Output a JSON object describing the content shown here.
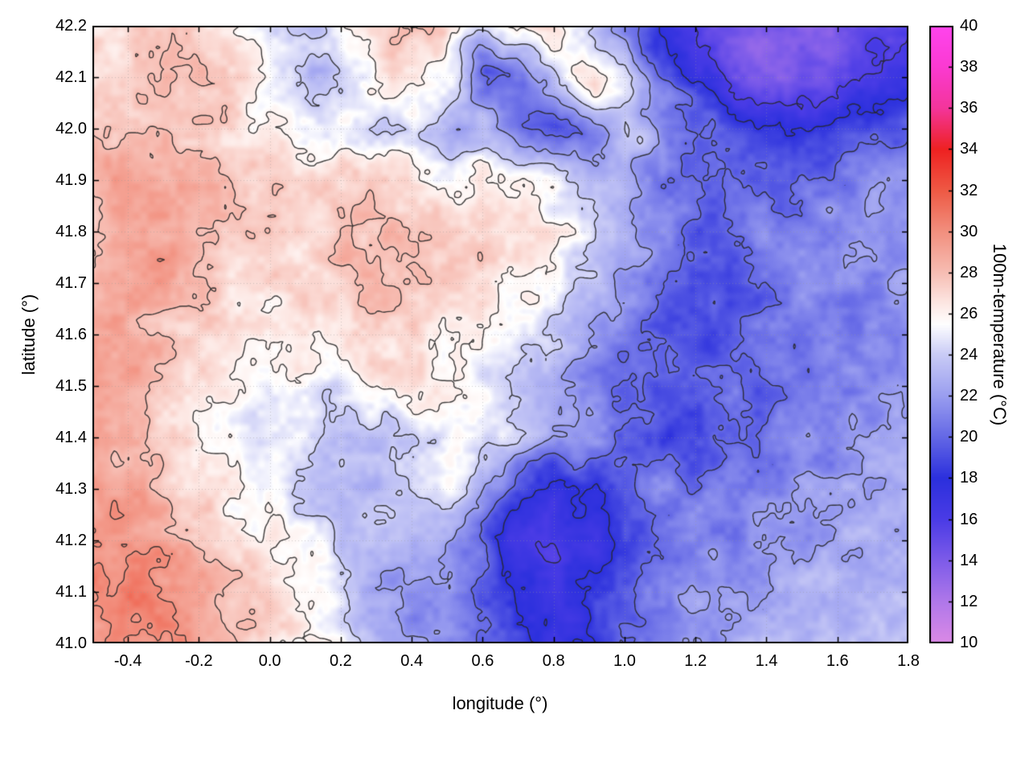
{
  "chart_data": {
    "type": "heatmap",
    "title": "",
    "xlabel": "longitude (°)",
    "ylabel": "latitude (°)",
    "cblabel": "100m-temperature (°C)",
    "x_range": [
      -0.5,
      1.8
    ],
    "y_range": [
      41.0,
      42.2
    ],
    "c_range": [
      10,
      40
    ],
    "grid": true,
    "x_ticks": [
      -0.4,
      -0.2,
      0.0,
      0.2,
      0.4,
      0.6,
      0.8,
      1.0,
      1.2,
      1.4,
      1.6,
      1.8
    ],
    "x_tick_labels": [
      "-0.4",
      "-0.2",
      "0.0",
      "0.2",
      "0.4",
      "0.6",
      "0.8",
      "1.0",
      "1.2",
      "1.4",
      "1.6",
      "1.8"
    ],
    "y_ticks": [
      41.0,
      41.1,
      41.2,
      41.3,
      41.4,
      41.5,
      41.6,
      41.7,
      41.8,
      41.9,
      42.0,
      42.1,
      42.2
    ],
    "y_tick_labels": [
      "41.0",
      "41.1",
      "41.2",
      "41.3",
      "41.4",
      "41.5",
      "41.6",
      "41.7",
      "41.8",
      "41.9",
      "42.0",
      "42.1",
      "42.2"
    ],
    "cb_ticks": [
      10,
      12,
      14,
      16,
      18,
      20,
      22,
      24,
      26,
      28,
      30,
      32,
      34,
      36,
      38,
      40
    ],
    "cb_tick_labels": [
      "10",
      "12",
      "14",
      "16",
      "18",
      "20",
      "22",
      "24",
      "26",
      "28",
      "30",
      "32",
      "34",
      "36",
      "38",
      "40"
    ],
    "contour_levels": [
      16,
      18,
      20,
      22,
      24,
      26,
      28,
      30
    ],
    "contour_color": "rgba(40,40,40,0.9)",
    "colormap_stops": [
      [
        10,
        "#dc8ae6"
      ],
      [
        12,
        "#b078ea"
      ],
      [
        14,
        "#7e5ce9"
      ],
      [
        16,
        "#4b3ce6"
      ],
      [
        18,
        "#2c30dd"
      ],
      [
        20,
        "#6468e6"
      ],
      [
        22,
        "#9a9ef0"
      ],
      [
        24,
        "#c9cbf6"
      ],
      [
        25.5,
        "#ffffff"
      ],
      [
        26.5,
        "#fde8e4"
      ],
      [
        28,
        "#f7beb4"
      ],
      [
        30,
        "#f2907f"
      ],
      [
        32,
        "#ee5a45"
      ],
      [
        34,
        "#ee2222"
      ],
      [
        36,
        "#f4359b"
      ],
      [
        38,
        "#fb3ad2"
      ],
      [
        40,
        "#ff45ee"
      ]
    ],
    "values_unit": "°C",
    "rows_order": "north_to_south",
    "col_lons": [
      -0.5,
      -0.4,
      -0.3,
      -0.2,
      -0.1,
      0.0,
      0.1,
      0.2,
      0.3,
      0.4,
      0.5,
      0.6,
      0.7,
      0.8,
      0.9,
      1.0,
      1.1,
      1.2,
      1.3,
      1.4,
      1.5,
      1.6,
      1.7,
      1.8
    ],
    "row_lats": [
      42.2,
      42.1,
      42.0,
      41.9,
      41.8,
      41.7,
      41.6,
      41.5,
      41.4,
      41.3,
      41.2,
      41.1,
      41.0
    ],
    "values": [
      [
        27,
        27,
        27,
        27,
        26,
        25,
        24,
        25,
        27,
        28,
        27,
        25,
        26,
        27,
        25,
        22,
        18,
        16,
        15,
        14,
        14,
        14,
        15,
        16
      ],
      [
        27,
        27,
        28,
        28,
        27,
        25,
        23,
        24,
        26,
        27,
        25,
        20,
        20,
        24,
        27,
        24,
        20,
        17,
        15,
        14,
        14,
        15,
        16,
        17
      ],
      [
        28,
        28,
        28,
        28,
        27,
        26,
        25,
        25,
        24,
        24,
        22,
        23,
        20,
        19,
        21,
        24,
        22,
        20,
        19,
        18,
        18,
        18,
        19,
        20
      ],
      [
        28,
        29,
        29,
        28,
        28,
        27,
        27,
        27,
        28,
        27,
        26,
        26,
        26,
        25,
        24,
        23,
        21,
        20,
        20,
        20,
        20,
        21,
        21,
        22
      ],
      [
        28,
        29,
        29,
        28,
        28,
        28,
        27,
        28,
        28,
        28,
        28,
        27,
        27,
        26,
        25,
        23,
        21,
        20,
        20,
        21,
        21,
        21,
        22,
        22
      ],
      [
        29,
        29,
        29,
        28,
        27,
        27,
        27,
        28,
        28,
        28,
        27,
        27,
        26,
        25,
        23,
        22,
        20,
        19,
        19,
        20,
        21,
        21,
        21,
        22
      ],
      [
        29,
        29,
        28,
        27,
        26,
        26,
        27,
        27,
        28,
        27,
        26,
        26,
        25,
        24,
        22,
        21,
        20,
        19,
        19,
        20,
        20,
        21,
        21,
        21
      ],
      [
        29,
        29,
        28,
        27,
        26,
        25,
        26,
        24,
        26,
        27,
        26,
        25,
        24,
        23,
        21,
        20,
        19,
        19,
        20,
        20,
        21,
        21,
        21,
        22
      ],
      [
        29,
        28,
        27,
        26,
        25,
        25,
        25,
        24,
        23,
        24,
        26,
        25,
        24,
        22,
        21,
        20,
        19,
        19,
        20,
        21,
        21,
        21,
        22,
        22
      ],
      [
        29,
        29,
        28,
        27,
        26,
        25,
        24,
        23,
        23,
        24,
        25,
        23,
        19,
        17,
        18,
        19,
        21,
        20,
        21,
        21,
        22,
        22,
        22,
        23
      ],
      [
        30,
        30,
        29,
        28,
        27,
        26,
        25,
        24,
        24,
        23,
        22,
        20,
        17,
        16,
        17,
        18,
        20,
        21,
        21,
        22,
        22,
        22,
        23,
        23
      ],
      [
        30,
        31,
        30,
        29,
        28,
        27,
        26,
        24,
        22,
        21,
        22,
        20,
        18,
        17,
        18,
        19,
        21,
        22,
        22,
        22,
        23,
        23,
        23,
        23
      ],
      [
        30,
        30,
        30,
        29,
        28,
        27,
        26,
        25,
        23,
        22,
        21,
        20,
        19,
        17,
        18,
        20,
        21,
        22,
        22,
        23,
        23,
        23,
        23,
        24
      ]
    ]
  }
}
